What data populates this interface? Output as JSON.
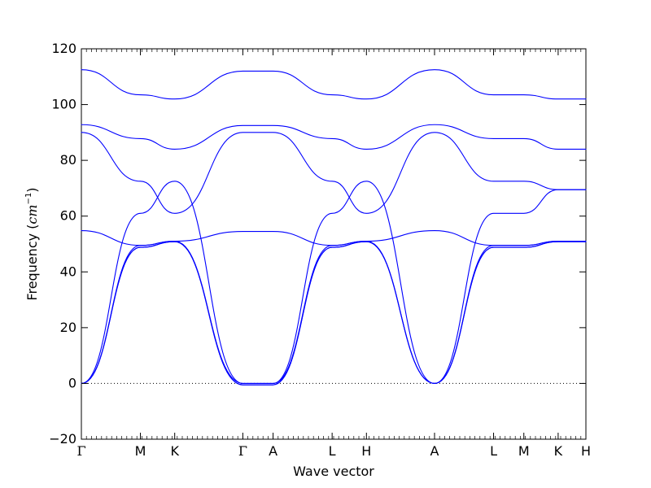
{
  "chart_data": {
    "type": "line",
    "title": "",
    "xlabel": "Wave vector",
    "ylabel": "Frequency (cm⁻¹)",
    "ylabel_parts": {
      "prefix": "Frequency (",
      "unit": "cm",
      "exponent": "−1",
      "suffix": ")"
    },
    "ylim": [
      -20,
      120
    ],
    "yticks": [
      -20,
      0,
      20,
      40,
      60,
      80,
      100,
      120
    ],
    "xlim": [
      0,
      10
    ],
    "xticks": [
      {
        "label": "Γ",
        "x": 0
      },
      {
        "label": "M",
        "x": 1.17
      },
      {
        "label": "K",
        "x": 1.85
      },
      {
        "label": "Γ",
        "x": 3.2
      },
      {
        "label": "A",
        "x": 3.8
      },
      {
        "label": "L",
        "x": 4.97
      },
      {
        "label": "H",
        "x": 5.65
      },
      {
        "label": "A",
        "x": 7.0
      },
      {
        "label": "L",
        "x": 8.17
      },
      {
        "label": "M",
        "x": 8.77
      },
      {
        "label": "K",
        "x": 9.45
      },
      {
        "label": "H",
        "x": 10.0
      }
    ],
    "grid": false,
    "zero_line": true,
    "line_color": "#0000ff",
    "series": [
      {
        "values": [
          [
            0,
            112.5
          ],
          [
            1.17,
            103.5
          ],
          [
            1.85,
            102
          ],
          [
            3.2,
            112
          ],
          [
            3.8,
            112
          ],
          [
            4.97,
            103.5
          ],
          [
            5.65,
            102
          ],
          [
            7.0,
            112.5
          ],
          [
            8.17,
            103.5
          ],
          [
            8.77,
            103.5
          ],
          [
            9.45,
            102
          ],
          [
            10.0,
            102
          ]
        ]
      },
      {
        "values": [
          [
            0,
            92.8
          ],
          [
            1.17,
            87.8
          ],
          [
            1.85,
            84
          ],
          [
            3.2,
            92.5
          ],
          [
            3.8,
            92.5
          ],
          [
            4.97,
            87.8
          ],
          [
            5.65,
            84
          ],
          [
            7.0,
            92.8
          ],
          [
            8.17,
            87.8
          ],
          [
            8.77,
            87.8
          ],
          [
            9.45,
            84
          ],
          [
            10.0,
            84
          ]
        ]
      },
      {
        "values": [
          [
            0,
            90
          ],
          [
            1.17,
            72.5
          ],
          [
            1.85,
            61
          ],
          [
            3.2,
            90
          ],
          [
            3.8,
            90
          ],
          [
            4.97,
            72.5
          ],
          [
            5.65,
            61
          ],
          [
            7.0,
            90
          ],
          [
            8.17,
            72.5
          ],
          [
            8.77,
            72.5
          ],
          [
            9.45,
            69.5
          ],
          [
            10.0,
            69.5
          ]
        ]
      },
      {
        "values": [
          [
            0,
            0
          ],
          [
            1.17,
            61
          ],
          [
            1.85,
            72.5
          ],
          [
            3.2,
            0
          ],
          [
            3.8,
            0
          ],
          [
            4.97,
            61
          ],
          [
            5.65,
            72.5
          ],
          [
            7.0,
            0
          ],
          [
            8.17,
            61
          ],
          [
            8.77,
            61
          ],
          [
            9.45,
            69.5
          ],
          [
            10.0,
            69.5
          ]
        ]
      },
      {
        "values": [
          [
            0,
            54.8
          ],
          [
            1.17,
            49.5
          ],
          [
            1.85,
            51
          ],
          [
            3.2,
            54.5
          ],
          [
            3.8,
            54.5
          ],
          [
            4.97,
            49.5
          ],
          [
            5.65,
            51
          ],
          [
            7.0,
            54.8
          ],
          [
            8.17,
            49.5
          ],
          [
            8.77,
            49.5
          ],
          [
            9.45,
            51
          ],
          [
            10.0,
            51
          ]
        ]
      },
      {
        "values": [
          [
            0,
            0
          ],
          [
            1.17,
            49.5
          ],
          [
            1.85,
            51
          ],
          [
            3.2,
            0
          ],
          [
            3.8,
            0
          ],
          [
            4.97,
            49.5
          ],
          [
            5.65,
            51
          ],
          [
            7.0,
            0
          ],
          [
            8.17,
            49.5
          ],
          [
            8.77,
            49.5
          ],
          [
            9.45,
            51
          ],
          [
            10.0,
            51
          ]
        ]
      },
      {
        "values": [
          [
            0,
            0
          ],
          [
            1.17,
            48.8
          ],
          [
            1.85,
            50.8
          ],
          [
            3.2,
            -0.5
          ],
          [
            3.8,
            -0.5
          ],
          [
            4.97,
            48.8
          ],
          [
            5.65,
            50.8
          ],
          [
            7.0,
            0
          ],
          [
            8.17,
            48.8
          ],
          [
            8.77,
            48.8
          ],
          [
            9.45,
            50.8
          ],
          [
            10.0,
            50.8
          ]
        ]
      },
      {
        "values": [
          [
            0,
            0
          ],
          [
            1.17,
            48.8
          ],
          [
            1.85,
            50.8
          ],
          [
            3.2,
            -0.5
          ],
          [
            3.8,
            -0.5
          ],
          [
            4.97,
            48.8
          ],
          [
            5.65,
            50.8
          ],
          [
            7.0,
            0
          ],
          [
            8.17,
            48.8
          ],
          [
            8.77,
            48.8
          ],
          [
            9.45,
            50.8
          ],
          [
            10.0,
            50.8
          ]
        ]
      }
    ]
  }
}
